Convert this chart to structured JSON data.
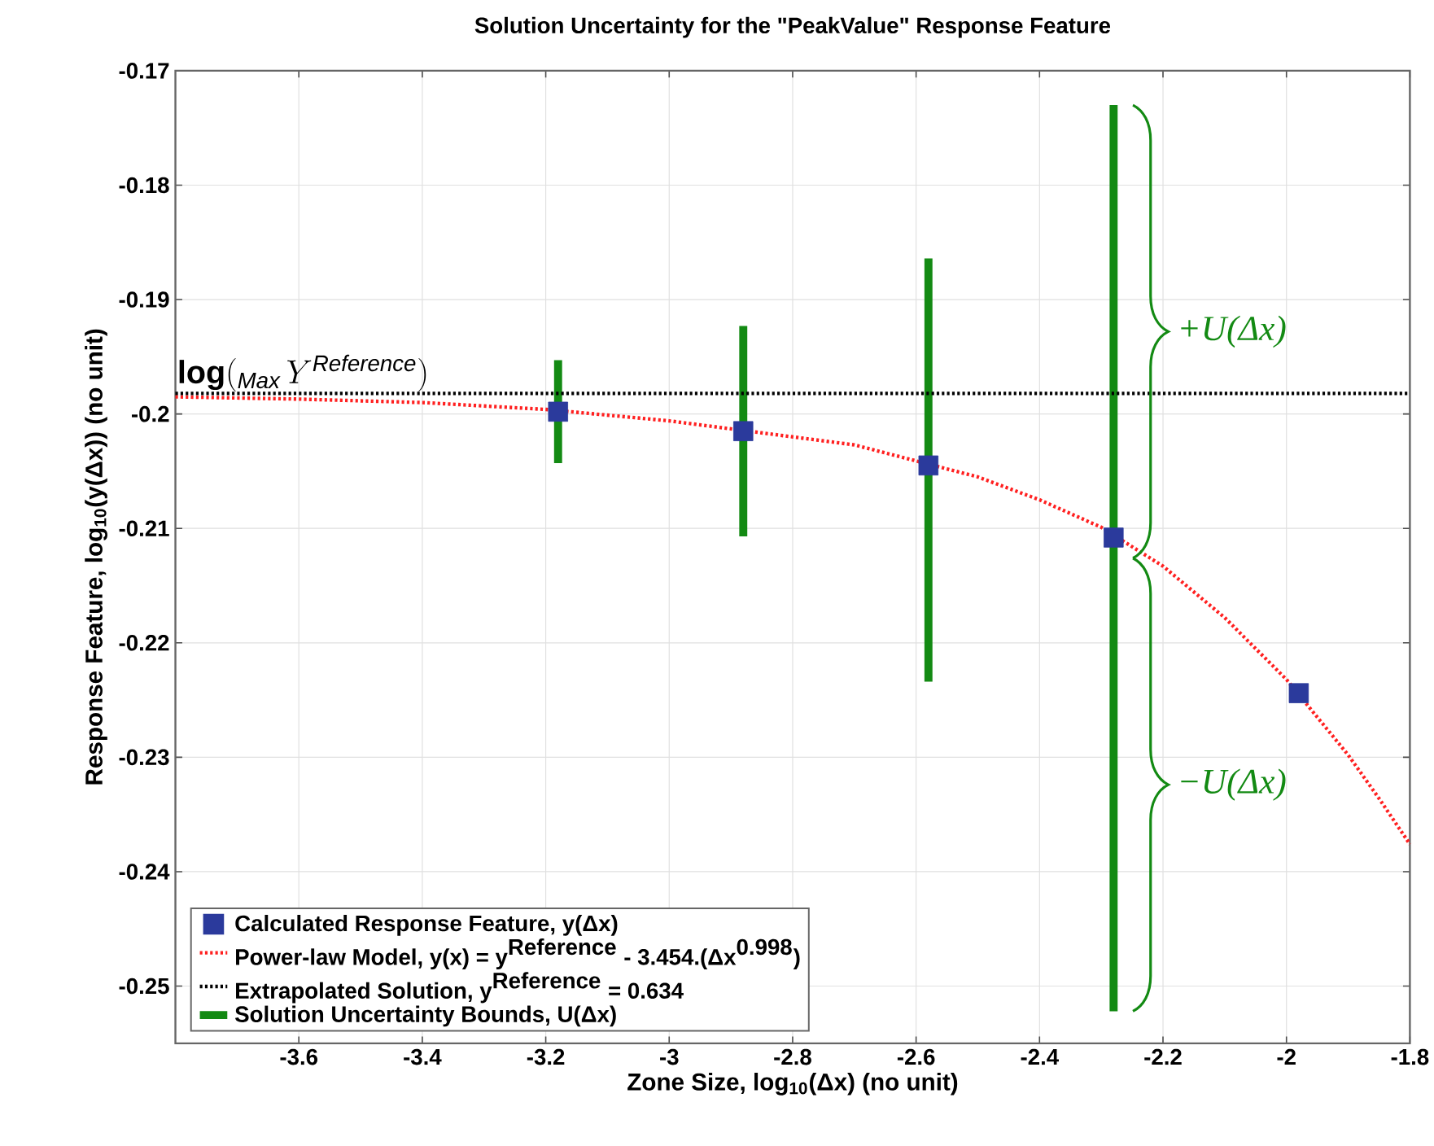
{
  "chart_data": {
    "type": "scatter",
    "title": "Solution Uncertainty for the \"PeakValue\" Response Feature",
    "xlabel": "Zone Size, log$_{10}$(Δx) (no unit)",
    "ylabel": "Response Feature, log$_{10}$(y(Δx)) (no unit)",
    "xlim": [
      -3.8,
      -1.8
    ],
    "ylim": [
      -0.255,
      -0.17
    ],
    "xticks": [
      -3.6,
      -3.4,
      -3.2,
      -3,
      -2.8,
      -2.6,
      -2.4,
      -2.2,
      -2,
      -1.8
    ],
    "yticks": [
      -0.25,
      -0.24,
      -0.23,
      -0.22,
      -0.21,
      -0.2,
      -0.19,
      -0.18,
      -0.17
    ],
    "grid": true,
    "legend": "bottom left",
    "series": [
      {
        "name": "\\textbf{Calculated Response Feature, y(Δx)}",
        "marker": "square",
        "color": "#2b3a9c",
        "x": [
          -3.18,
          -2.88,
          -2.58,
          -2.28,
          -1.98
        ],
        "values": [
          -0.1998,
          -0.2015,
          -0.2045,
          -0.2108,
          -0.2244
        ]
      },
      {
        "name": "\\textbf{Power-law Model, y(x) = y}^{\\textbf{Reference}}\\textbf{ - 3.454.(Δx}^{\\textbf{0.998}}\\textbf{)}",
        "type": "line",
        "line_style": "dotted",
        "color": "#ff2020",
        "x": [
          -3.8,
          -3.6,
          -3.4,
          -3.2,
          -3.0,
          -2.8,
          -2.7,
          -2.6,
          -2.5,
          -2.4,
          -2.3,
          -2.2,
          -2.1,
          -2.0,
          -1.9,
          -1.85,
          -1.8
        ],
        "values": [
          -0.1985,
          -0.1987,
          -0.199,
          -0.1996,
          -0.2006,
          -0.202,
          -0.2027,
          -0.2041,
          -0.2055,
          -0.2075,
          -0.2099,
          -0.2133,
          -0.2178,
          -0.2232,
          -0.2298,
          -0.2336,
          -0.2376
        ]
      },
      {
        "name": "\\textbf{Extrapolated Solution, y}^{\\textbf{Reference}}\\textbf{ = 0.634}",
        "type": "line",
        "line_style": "dotted",
        "color": "#000000",
        "x": [
          -3.8,
          -1.8
        ],
        "values": [
          -0.1982,
          -0.1982
        ]
      },
      {
        "name": "\\textbf{Solution Uncertainty Bounds, U(Δx)}",
        "type": "bar",
        "color": "#138a13",
        "x": [
          -3.18,
          -2.88,
          -2.58,
          -2.28
        ],
        "base": [
          -0.2043,
          -0.2107,
          -0.2234,
          -0.2522
        ],
        "values": [
          0.009,
          0.0184,
          0.037,
          0.0792
        ]
      }
    ],
    "annotations": [
      {
        "text": "\\mathbf{log}(_{\\mathit{Max}}\\,Y^{\\mathit{Reference}})",
        "x": -3.8,
        "y": -0.1982
      },
      "+U(Δx)",
      "−U(Δx)"
    ]
  }
}
